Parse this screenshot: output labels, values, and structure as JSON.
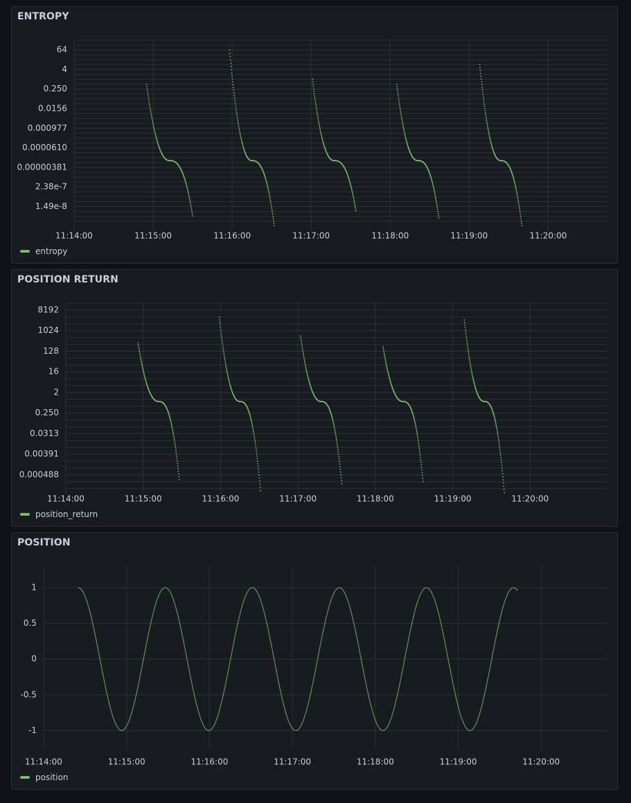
{
  "colors": {
    "series": "#73bf69",
    "grid": "#2c3036",
    "text": "#ccccdc"
  },
  "panels": {
    "entropy": {
      "title": "ENTROPY",
      "legend": "entropy"
    },
    "position_return": {
      "title": "POSITION RETURN",
      "legend": "position_return"
    },
    "position": {
      "title": "POSITION",
      "legend": "position"
    }
  },
  "chart_data": [
    {
      "type": "scatter",
      "title": "ENTROPY",
      "series": [
        {
          "name": "entropy"
        }
      ],
      "yscale": "log2",
      "yticks": [
        "64",
        "4",
        "0.250",
        "0.0156",
        "0.000977",
        "0.0000610",
        "0.00000381",
        "2.38e-7",
        "1.49e-8"
      ],
      "xticks": [
        "11:14:00",
        "11:15:00",
        "11:16:00",
        "11:17:00",
        "11:18:00",
        "11:19:00",
        "11:20:00"
      ],
      "xlim": [
        "11:14:00",
        "11:20:45"
      ],
      "ylim": [
        1e-09,
        256
      ],
      "cycle_starts": [
        "11:14:55",
        "11:15:58",
        "11:17:01",
        "11:18:05",
        "11:19:08"
      ],
      "cycle_ends": [
        "11:15:30",
        "11:16:32",
        "11:17:34",
        "11:18:37",
        "11:19:40"
      ],
      "cycle_peaks": [
        0.5,
        64,
        1,
        0.5,
        8
      ],
      "cycle_floors": [
        4e-09,
        1e-09,
        8e-09,
        3e-09,
        1e-09
      ],
      "shoulder_value": 1e-05
    },
    {
      "type": "scatter",
      "title": "POSITION RETURN",
      "series": [
        {
          "name": "position_return"
        }
      ],
      "yscale": "log2",
      "yticks": [
        "8192",
        "1024",
        "128",
        "16",
        "2",
        "0.250",
        "0.0313",
        "0.00391",
        "0.000488"
      ],
      "xticks": [
        "11:14:00",
        "11:15:00",
        "11:16:00",
        "11:17:00",
        "11:18:00",
        "11:19:00",
        "11:20:00"
      ],
      "xlim": [
        "11:14:00",
        "11:21:00"
      ],
      "ylim": [
        0.00012,
        16384
      ],
      "cycle_starts": [
        "11:14:56",
        "11:15:59",
        "11:17:02",
        "11:18:06",
        "11:19:09"
      ],
      "cycle_ends": [
        "11:15:28",
        "11:16:31",
        "11:17:34",
        "11:18:37",
        "11:19:40"
      ],
      "cycle_peaks": [
        300,
        4000,
        600,
        200,
        3000
      ],
      "cycle_floors": [
        0.0003,
        0.0001,
        0.0002,
        0.00025,
        8e-05
      ],
      "shoulder_value": 0.8
    },
    {
      "type": "line",
      "title": "POSITION",
      "series": [
        {
          "name": "position"
        }
      ],
      "yscale": "linear",
      "yticks": [
        "1",
        "0.5",
        "0",
        "-0.5",
        "-1"
      ],
      "yvalues": [
        1,
        0.5,
        0,
        -0.5,
        -1
      ],
      "xticks": [
        "11:14:00",
        "11:15:00",
        "11:16:00",
        "11:17:00",
        "11:18:00",
        "11:19:00",
        "11:20:00"
      ],
      "xlim": [
        "11:14:00",
        "11:20:48"
      ],
      "ylim": [
        -1.2,
        1.3
      ],
      "start": "11:14:25",
      "end": "11:19:43",
      "period_seconds": 63,
      "phase_peak": "11:14:25"
    }
  ]
}
